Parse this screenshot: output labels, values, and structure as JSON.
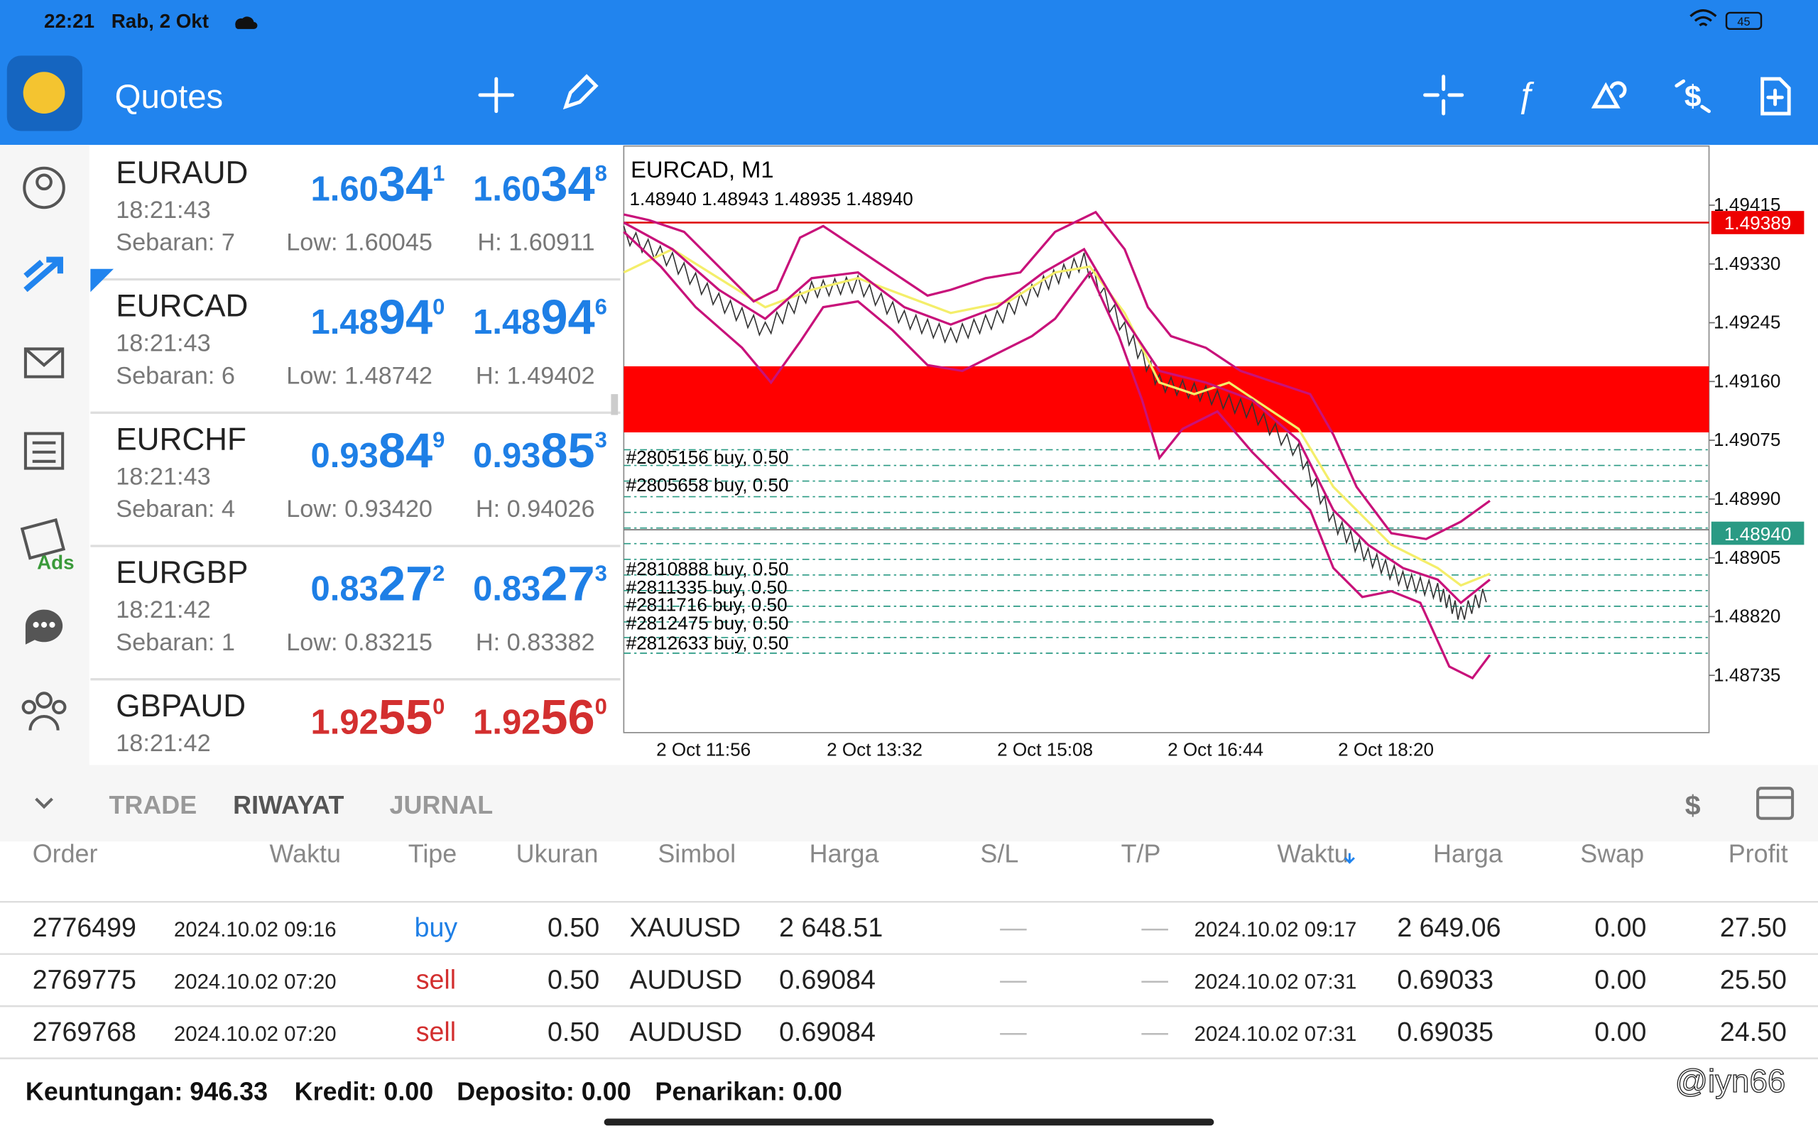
{
  "status_bar": {
    "time": "22:21",
    "date": "Rab, 2 Okt",
    "battery": "45"
  },
  "header": {
    "title": "Quotes"
  },
  "quotes": [
    {
      "symbol": "EURAUD",
      "time": "18:21:43",
      "spread": "Sebaran: 7",
      "low": "Low: 1.60045",
      "high": "H: 1.60911",
      "color": "#1e7fe6",
      "bid": [
        "1.60",
        "34",
        "1"
      ],
      "ask": [
        "1.60",
        "34",
        "8"
      ]
    },
    {
      "symbol": "EURCAD",
      "time": "18:21:43",
      "spread": "Sebaran: 6",
      "low": "Low: 1.48742",
      "high": "H: 1.49402",
      "color": "#1e7fe6",
      "bid": [
        "1.48",
        "94",
        "0"
      ],
      "ask": [
        "1.48",
        "94",
        "6"
      ]
    },
    {
      "symbol": "EURCHF",
      "time": "18:21:43",
      "spread": "Sebaran: 4",
      "low": "Low: 0.93420",
      "high": "H: 0.94026",
      "color": "#1e7fe6",
      "bid": [
        "0.93",
        "84",
        "9"
      ],
      "ask": [
        "0.93",
        "85",
        "3"
      ]
    },
    {
      "symbol": "EURGBP",
      "time": "18:21:42",
      "spread": "Sebaran: 1",
      "low": "Low: 0.83215",
      "high": "H: 0.83382",
      "color": "#1e7fe6",
      "bid": [
        "0.83",
        "27",
        "2"
      ],
      "ask": [
        "0.83",
        "27",
        "3"
      ]
    },
    {
      "symbol": "GBPAUD",
      "time": "18:21:42",
      "color": "#d32f2f",
      "bid": [
        "1.92",
        "55",
        "0"
      ],
      "ask": [
        "1.92",
        "56",
        "0"
      ]
    }
  ],
  "sidebar": {
    "ads": "Ads"
  },
  "chart": {
    "title": "EURCAD, M1",
    "ohlc": "1.48940 1.48943 1.48935 1.48940",
    "price_labels": [
      "1.49415",
      "1.49330",
      "1.49245",
      "1.49160",
      "1.49075",
      "1.48990",
      "1.48905",
      "1.48820",
      "1.48735"
    ],
    "line_red": "1.49389",
    "line_bid": "1.48940",
    "time_labels": [
      "2 Oct 11:56",
      "2 Oct 13:32",
      "2 Oct 15:08",
      "2 Oct 16:44",
      "2 Oct 18:20"
    ],
    "orders": [
      "#2805156 buy, 0.50",
      "#2805658 buy, 0.50",
      "#2810888 buy, 0.50",
      "#2811335 buy, 0.50",
      "#2811716 buy, 0.50",
      "#2812475 buy, 0.50",
      "#2812633 buy, 0.50"
    ]
  },
  "tabs": [
    "TRADE",
    "RIWAYAT",
    "JURNAL"
  ],
  "table": {
    "columns": [
      "Order",
      "Waktu",
      "Tipe",
      "Ukuran",
      "Simbol",
      "Harga",
      "S/L",
      "T/P",
      "Waktu",
      "Harga",
      "Swap",
      "Profit"
    ],
    "rows": [
      [
        "2776499",
        "2024.10.02 09:16",
        "buy",
        "0.50",
        "XAUUSD",
        "2 648.51",
        "—",
        "—",
        "2024.10.02 09:17",
        "2 649.06",
        "0.00",
        "27.50"
      ],
      [
        "2769775",
        "2024.10.02 07:20",
        "sell",
        "0.50",
        "AUDUSD",
        "0.69084",
        "—",
        "—",
        "2024.10.02 07:31",
        "0.69033",
        "0.00",
        "25.50"
      ],
      [
        "2769768",
        "2024.10.02 07:20",
        "sell",
        "0.50",
        "AUDUSD",
        "0.69084",
        "—",
        "—",
        "2024.10.02 07:31",
        "0.69035",
        "0.00",
        "24.50"
      ]
    ]
  },
  "footer": [
    "Keuntungan: 946.33",
    "Kredit: 0.00",
    "Deposito: 0.00",
    "Penarikan: 0.00"
  ],
  "watermark": "@iyn66"
}
